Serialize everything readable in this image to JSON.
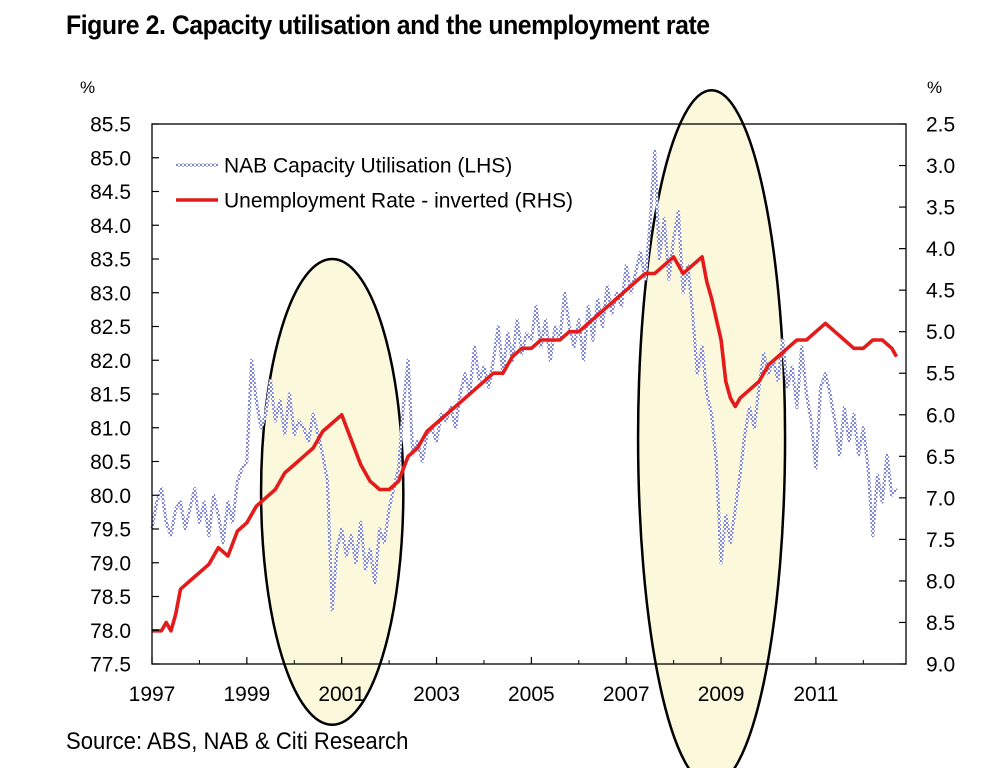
{
  "title": "Figure 2. Capacity utilisation and the unemployment rate",
  "source": "Source: ABS, NAB & Citi Research",
  "left_unit": "%",
  "right_unit": "%",
  "chart_data": {
    "type": "line",
    "title": "Figure 2. Capacity utilisation and the unemployment rate",
    "xlim": [
      1997.0,
      2012.9
    ],
    "x_ticks": [
      1997,
      1999,
      2001,
      2003,
      2005,
      2007,
      2009,
      2011
    ],
    "y_left": {
      "label": "%",
      "lim": [
        77.5,
        85.5
      ],
      "ticks": [
        77.5,
        78.0,
        78.5,
        79.0,
        79.5,
        80.0,
        80.5,
        81.0,
        81.5,
        82.0,
        82.5,
        83.0,
        83.5,
        84.0,
        84.5,
        85.0,
        85.5
      ]
    },
    "y_right": {
      "label": "%",
      "lim": [
        9.0,
        2.5
      ],
      "inverted": true,
      "ticks": [
        2.5,
        3.0,
        3.5,
        4.0,
        4.5,
        5.0,
        5.5,
        6.0,
        6.5,
        7.0,
        7.5,
        8.0,
        8.5,
        9.0
      ]
    },
    "legend_position": "top-left",
    "grid": false,
    "series": [
      {
        "name": "NAB Capacity Utilisation (LHS)",
        "axis": "left",
        "color": "#7f86d8",
        "style": "hatched-thin",
        "points": [
          [
            1997.0,
            79.5
          ],
          [
            1997.1,
            79.9
          ],
          [
            1997.2,
            80.1
          ],
          [
            1997.3,
            79.6
          ],
          [
            1997.4,
            79.4
          ],
          [
            1997.5,
            79.8
          ],
          [
            1997.6,
            79.9
          ],
          [
            1997.7,
            79.5
          ],
          [
            1997.8,
            79.8
          ],
          [
            1997.9,
            80.1
          ],
          [
            1998.0,
            79.6
          ],
          [
            1998.1,
            79.9
          ],
          [
            1998.2,
            79.4
          ],
          [
            1998.3,
            80.0
          ],
          [
            1998.4,
            79.7
          ],
          [
            1998.5,
            79.3
          ],
          [
            1998.6,
            79.9
          ],
          [
            1998.7,
            79.6
          ],
          [
            1998.8,
            80.2
          ],
          [
            1998.9,
            80.4
          ],
          [
            1999.0,
            80.5
          ],
          [
            1999.1,
            82.0
          ],
          [
            1999.2,
            81.4
          ],
          [
            1999.3,
            81.0
          ],
          [
            1999.4,
            81.2
          ],
          [
            1999.5,
            81.7
          ],
          [
            1999.6,
            81.1
          ],
          [
            1999.7,
            81.4
          ],
          [
            1999.8,
            80.9
          ],
          [
            1999.9,
            81.5
          ],
          [
            2000.0,
            80.9
          ],
          [
            2000.1,
            81.1
          ],
          [
            2000.2,
            81.0
          ],
          [
            2000.3,
            80.8
          ],
          [
            2000.4,
            81.2
          ],
          [
            2000.5,
            80.9
          ],
          [
            2000.6,
            80.6
          ],
          [
            2000.7,
            80.2
          ],
          [
            2000.8,
            78.3
          ],
          [
            2000.9,
            79.2
          ],
          [
            2001.0,
            79.5
          ],
          [
            2001.1,
            79.1
          ],
          [
            2001.2,
            79.4
          ],
          [
            2001.3,
            79.0
          ],
          [
            2001.4,
            79.6
          ],
          [
            2001.5,
            78.9
          ],
          [
            2001.6,
            79.2
          ],
          [
            2001.7,
            78.7
          ],
          [
            2001.8,
            79.5
          ],
          [
            2001.9,
            79.3
          ],
          [
            2002.0,
            79.8
          ],
          [
            2002.1,
            80.1
          ],
          [
            2002.2,
            80.4
          ],
          [
            2002.3,
            81.3
          ],
          [
            2002.4,
            82.0
          ],
          [
            2002.5,
            80.6
          ],
          [
            2002.6,
            80.8
          ],
          [
            2002.7,
            80.5
          ],
          [
            2002.8,
            80.9
          ],
          [
            2002.9,
            81.0
          ],
          [
            2003.0,
            80.8
          ],
          [
            2003.1,
            81.2
          ],
          [
            2003.2,
            81.1
          ],
          [
            2003.3,
            81.3
          ],
          [
            2003.4,
            81.0
          ],
          [
            2003.5,
            81.5
          ],
          [
            2003.6,
            81.8
          ],
          [
            2003.7,
            81.5
          ],
          [
            2003.8,
            82.2
          ],
          [
            2003.9,
            81.7
          ],
          [
            2004.0,
            81.9
          ],
          [
            2004.1,
            81.6
          ],
          [
            2004.2,
            82.0
          ],
          [
            2004.3,
            82.5
          ],
          [
            2004.4,
            81.8
          ],
          [
            2004.5,
            82.4
          ],
          [
            2004.6,
            82.0
          ],
          [
            2004.7,
            82.6
          ],
          [
            2004.8,
            82.1
          ],
          [
            2004.9,
            82.4
          ],
          [
            2005.0,
            82.3
          ],
          [
            2005.1,
            82.8
          ],
          [
            2005.2,
            82.2
          ],
          [
            2005.3,
            82.6
          ],
          [
            2005.4,
            82.0
          ],
          [
            2005.5,
            82.5
          ],
          [
            2005.6,
            82.3
          ],
          [
            2005.7,
            83.0
          ],
          [
            2005.8,
            82.5
          ],
          [
            2005.9,
            82.2
          ],
          [
            2006.0,
            82.6
          ],
          [
            2006.1,
            82.0
          ],
          [
            2006.2,
            82.8
          ],
          [
            2006.3,
            82.3
          ],
          [
            2006.4,
            82.9
          ],
          [
            2006.5,
            82.5
          ],
          [
            2006.6,
            83.1
          ],
          [
            2006.7,
            82.7
          ],
          [
            2006.8,
            83.0
          ],
          [
            2006.9,
            82.8
          ],
          [
            2007.0,
            83.4
          ],
          [
            2007.1,
            83.0
          ],
          [
            2007.2,
            83.3
          ],
          [
            2007.3,
            83.6
          ],
          [
            2007.4,
            83.2
          ],
          [
            2007.5,
            84.0
          ],
          [
            2007.6,
            85.1
          ],
          [
            2007.7,
            83.5
          ],
          [
            2007.8,
            84.1
          ],
          [
            2007.9,
            83.2
          ],
          [
            2008.0,
            83.8
          ],
          [
            2008.1,
            84.2
          ],
          [
            2008.2,
            83.0
          ],
          [
            2008.3,
            83.4
          ],
          [
            2008.4,
            82.7
          ],
          [
            2008.5,
            81.8
          ],
          [
            2008.6,
            82.2
          ],
          [
            2008.7,
            81.5
          ],
          [
            2008.8,
            81.2
          ],
          [
            2008.9,
            80.5
          ],
          [
            2009.0,
            79.0
          ],
          [
            2009.1,
            79.7
          ],
          [
            2009.2,
            79.3
          ],
          [
            2009.3,
            79.8
          ],
          [
            2009.4,
            80.3
          ],
          [
            2009.5,
            80.9
          ],
          [
            2009.6,
            81.3
          ],
          [
            2009.7,
            81.0
          ],
          [
            2009.8,
            81.6
          ],
          [
            2009.9,
            82.1
          ],
          [
            2010.0,
            81.8
          ],
          [
            2010.1,
            82.0
          ],
          [
            2010.2,
            81.7
          ],
          [
            2010.3,
            82.3
          ],
          [
            2010.4,
            81.6
          ],
          [
            2010.5,
            81.9
          ],
          [
            2010.6,
            81.3
          ],
          [
            2010.7,
            82.2
          ],
          [
            2010.8,
            81.5
          ],
          [
            2010.9,
            81.1
          ],
          [
            2011.0,
            80.4
          ],
          [
            2011.1,
            81.6
          ],
          [
            2011.2,
            81.8
          ],
          [
            2011.3,
            81.5
          ],
          [
            2011.4,
            81.1
          ],
          [
            2011.5,
            80.6
          ],
          [
            2011.6,
            81.3
          ],
          [
            2011.7,
            80.8
          ],
          [
            2011.8,
            81.2
          ],
          [
            2011.9,
            80.6
          ],
          [
            2012.0,
            81.0
          ],
          [
            2012.1,
            80.4
          ],
          [
            2012.2,
            79.4
          ],
          [
            2012.3,
            80.3
          ],
          [
            2012.4,
            79.9
          ],
          [
            2012.5,
            80.6
          ],
          [
            2012.6,
            80.0
          ],
          [
            2012.7,
            80.1
          ]
        ]
      },
      {
        "name": "Unemployment Rate - inverted (RHS)",
        "axis": "right",
        "color": "#e41b1b",
        "style": "solid-thick",
        "points": [
          [
            1997.0,
            8.6
          ],
          [
            1997.2,
            8.6
          ],
          [
            1997.3,
            8.5
          ],
          [
            1997.4,
            8.6
          ],
          [
            1997.5,
            8.4
          ],
          [
            1997.6,
            8.1
          ],
          [
            1997.8,
            8.0
          ],
          [
            1998.0,
            7.9
          ],
          [
            1998.2,
            7.8
          ],
          [
            1998.4,
            7.6
          ],
          [
            1998.6,
            7.7
          ],
          [
            1998.8,
            7.4
          ],
          [
            1999.0,
            7.3
          ],
          [
            1999.2,
            7.1
          ],
          [
            1999.4,
            7.0
          ],
          [
            1999.6,
            6.9
          ],
          [
            1999.8,
            6.7
          ],
          [
            2000.0,
            6.6
          ],
          [
            2000.2,
            6.5
          ],
          [
            2000.4,
            6.4
          ],
          [
            2000.6,
            6.2
          ],
          [
            2000.8,
            6.1
          ],
          [
            2001.0,
            6.0
          ],
          [
            2001.2,
            6.3
          ],
          [
            2001.4,
            6.6
          ],
          [
            2001.6,
            6.8
          ],
          [
            2001.8,
            6.9
          ],
          [
            2002.0,
            6.9
          ],
          [
            2002.2,
            6.8
          ],
          [
            2002.4,
            6.5
          ],
          [
            2002.6,
            6.4
          ],
          [
            2002.8,
            6.2
          ],
          [
            2003.0,
            6.1
          ],
          [
            2003.2,
            6.0
          ],
          [
            2003.4,
            5.9
          ],
          [
            2003.6,
            5.8
          ],
          [
            2003.8,
            5.7
          ],
          [
            2004.0,
            5.6
          ],
          [
            2004.2,
            5.5
          ],
          [
            2004.4,
            5.5
          ],
          [
            2004.6,
            5.3
          ],
          [
            2004.8,
            5.2
          ],
          [
            2005.0,
            5.2
          ],
          [
            2005.2,
            5.1
          ],
          [
            2005.4,
            5.1
          ],
          [
            2005.6,
            5.1
          ],
          [
            2005.8,
            5.0
          ],
          [
            2006.0,
            5.0
          ],
          [
            2006.2,
            4.9
          ],
          [
            2006.4,
            4.8
          ],
          [
            2006.6,
            4.7
          ],
          [
            2006.8,
            4.6
          ],
          [
            2007.0,
            4.5
          ],
          [
            2007.2,
            4.4
          ],
          [
            2007.4,
            4.3
          ],
          [
            2007.6,
            4.3
          ],
          [
            2007.8,
            4.2
          ],
          [
            2008.0,
            4.1
          ],
          [
            2008.2,
            4.3
          ],
          [
            2008.4,
            4.2
          ],
          [
            2008.6,
            4.1
          ],
          [
            2008.7,
            4.4
          ],
          [
            2008.8,
            4.6
          ],
          [
            2009.0,
            5.1
          ],
          [
            2009.1,
            5.6
          ],
          [
            2009.2,
            5.8
          ],
          [
            2009.3,
            5.9
          ],
          [
            2009.4,
            5.8
          ],
          [
            2009.6,
            5.7
          ],
          [
            2009.8,
            5.6
          ],
          [
            2010.0,
            5.4
          ],
          [
            2010.2,
            5.3
          ],
          [
            2010.4,
            5.2
          ],
          [
            2010.6,
            5.1
          ],
          [
            2010.8,
            5.1
          ],
          [
            2011.0,
            5.0
          ],
          [
            2011.2,
            4.9
          ],
          [
            2011.4,
            5.0
          ],
          [
            2011.6,
            5.1
          ],
          [
            2011.8,
            5.2
          ],
          [
            2012.0,
            5.2
          ],
          [
            2012.2,
            5.1
          ],
          [
            2012.4,
            5.1
          ],
          [
            2012.6,
            5.2
          ],
          [
            2012.7,
            5.3
          ]
        ]
      }
    ],
    "annotations": [
      {
        "type": "ellipse",
        "center_x": 2000.8,
        "center_y_left": 80.05,
        "radius_x_years": 1.5,
        "radius_y_left": 3.45
      },
      {
        "type": "ellipse",
        "center_x": 2008.8,
        "center_y_left": 80.85,
        "radius_x_years": 1.55,
        "radius_y_left": 5.15
      }
    ]
  }
}
